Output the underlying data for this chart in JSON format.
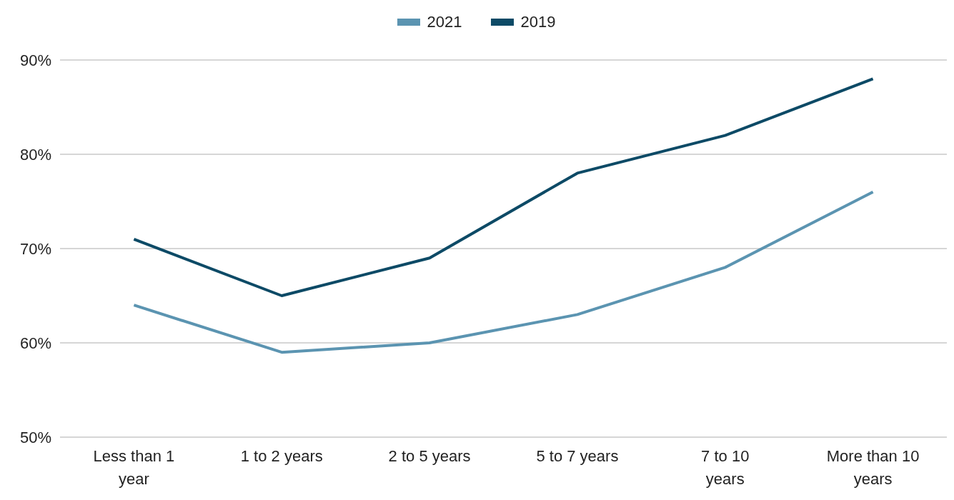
{
  "chart_data": {
    "type": "line",
    "categories": [
      "Less than 1 year",
      "1 to 2 years",
      "2 to 5 years",
      "5 to 7 years",
      "7 to 10 years",
      "More than 10 years"
    ],
    "series": [
      {
        "name": "2021",
        "color": "#5b94b1",
        "values": [
          64,
          59,
          60,
          63,
          68,
          76
        ]
      },
      {
        "name": "2019",
        "color": "#0d4a66",
        "values": [
          71,
          65,
          69,
          78,
          82,
          88
        ]
      }
    ],
    "ylim": [
      50,
      90
    ],
    "yticks": [
      {
        "value": 50,
        "label": "50%"
      },
      {
        "value": 60,
        "label": "60%"
      },
      {
        "value": 70,
        "label": "70%"
      },
      {
        "value": 80,
        "label": "80%"
      },
      {
        "value": 90,
        "label": "90%"
      }
    ],
    "grid": "y",
    "legend": "top",
    "marker": "none",
    "line_style": "solid"
  }
}
